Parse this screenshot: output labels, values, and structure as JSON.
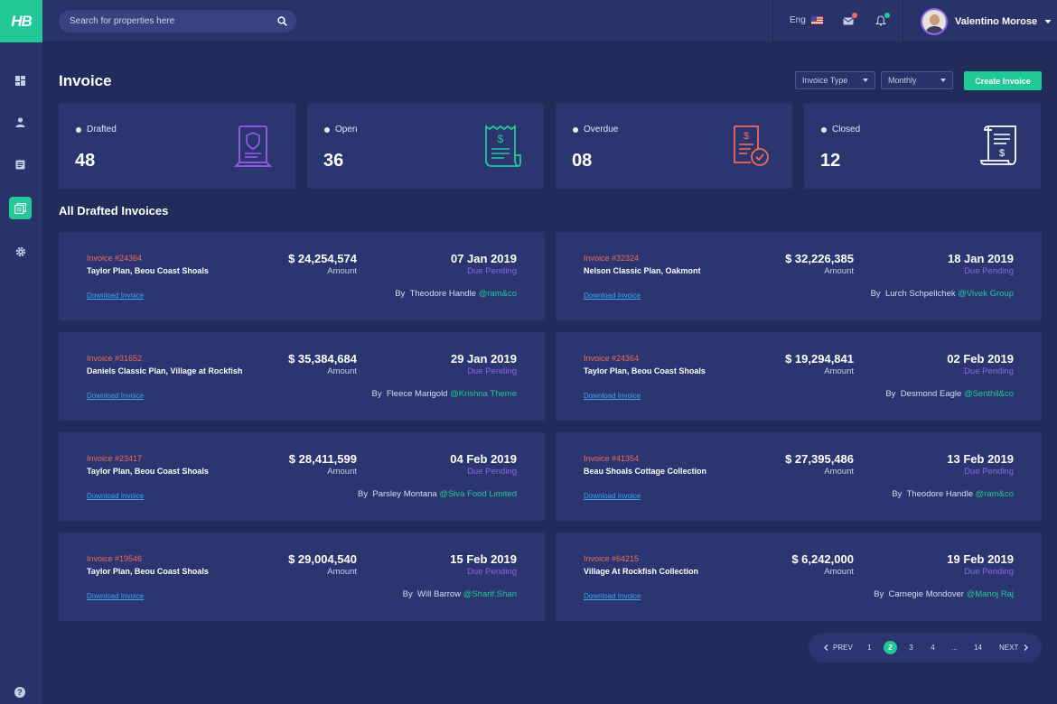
{
  "app": {
    "logo_text": "HB"
  },
  "search": {
    "placeholder": "Search for properties here"
  },
  "header": {
    "language": "Eng",
    "user_name": "Valentino Morose"
  },
  "page": {
    "title": "Invoice",
    "filter_type": "Invoice Type",
    "filter_period": "Monthly",
    "create_label": "Create Invoice"
  },
  "stats": [
    {
      "label": "Drafted",
      "value": "48",
      "icon": "certificate-document-icon",
      "color": "#9b5cf0"
    },
    {
      "label": "Open",
      "value": "36",
      "icon": "receipt-icon",
      "color": "#23c897"
    },
    {
      "label": "Overdue",
      "value": "08",
      "icon": "invoice-check-icon",
      "color": "#f16a5b"
    },
    {
      "label": "Closed",
      "value": "12",
      "icon": "receipt-scroll-icon",
      "color": "#ffffff"
    }
  ],
  "section_title": "All Drafted Invoices",
  "invoices": [
    {
      "number": "Invoice #24364",
      "plan": "Taylor Plan, Beou Coast Shoals",
      "download": "Download Invoice",
      "amount": "$ 24,254,574",
      "amount_label": "Amount",
      "date": "07 Jan 2019",
      "status": "Due Pending",
      "by": "By",
      "person": "Theodore Handle",
      "company": "@ram&co"
    },
    {
      "number": "Invoice #32324",
      "plan": "Nelson Classic Plan, Oakmont",
      "download": "Download Invoice",
      "amount": "$ 32,226,385",
      "amount_label": "Amount",
      "date": "18 Jan 2019",
      "status": "Due Pending",
      "by": "By",
      "person": "Lurch Schpellchek",
      "company": "@Vivek Group"
    },
    {
      "number": "Invoice #31652",
      "plan": "Daniels Classic Plan, Village at Rockfish",
      "download": "Download Invoice",
      "amount": "$ 35,384,684",
      "amount_label": "Amount",
      "date": "29 Jan 2019",
      "status": "Due Pending",
      "by": "By",
      "person": "Fleece Marigold",
      "company": "@Krishna Theme"
    },
    {
      "number": "Invoice #24364",
      "plan": "Taylor Plan, Beou Coast Shoals",
      "download": "Download Invoice",
      "amount": "$ 19,294,841",
      "amount_label": "Amount",
      "date": "02 Feb 2019",
      "status": "Due Pending",
      "by": "By",
      "person": "Desmond Eagle",
      "company": "@Senthil&co"
    },
    {
      "number": "Invoice #23417",
      "plan": "Taylor Plan, Beou Coast Shoals",
      "download": "Download Invoice",
      "amount": "$ 28,411,599",
      "amount_label": "Amount",
      "date": "04 Feb 2019",
      "status": "Due Pending",
      "by": "By",
      "person": "Parsley Montana",
      "company": "@Siva Food Limited"
    },
    {
      "number": "Invoice #41354",
      "plan": "Beau Shoals Cottage Collection",
      "download": "Download Invoice",
      "amount": "$ 27,395,486",
      "amount_label": "Amount",
      "date": "13 Feb 2019",
      "status": "Due Pending",
      "by": "By",
      "person": "Theodore Handle",
      "company": "@ram&co"
    },
    {
      "number": "Invoice #19546",
      "plan": "Taylor Plan, Beou Coast Shoals",
      "download": "Download Invoice",
      "amount": "$ 29,004,540",
      "amount_label": "Amount",
      "date": "15 Feb 2019",
      "status": "Due Pending",
      "by": "By",
      "person": "Will Barrow",
      "company": "@Sharif.Shan"
    },
    {
      "number": "Invoice #64215",
      "plan": "Village At Rockfish Collection",
      "download": "Download Invoice",
      "amount": "$ 6,242,000",
      "amount_label": "Amount",
      "date": "19 Feb 2019",
      "status": "Due Pending",
      "by": "By",
      "person": "Carnegie Mondover",
      "company": "@Manoj Raj"
    }
  ],
  "pagination": {
    "prev": "PREV",
    "next": "NEXT",
    "pages": [
      "1",
      "2",
      "3",
      "4",
      "...",
      "14"
    ],
    "current": "2"
  },
  "sidebar": {
    "items": [
      {
        "name": "dashboard-icon"
      },
      {
        "name": "user-icon"
      },
      {
        "name": "document-icon"
      },
      {
        "name": "invoice-icon",
        "active": true
      },
      {
        "name": "gear-icon"
      }
    ],
    "help": "?"
  }
}
